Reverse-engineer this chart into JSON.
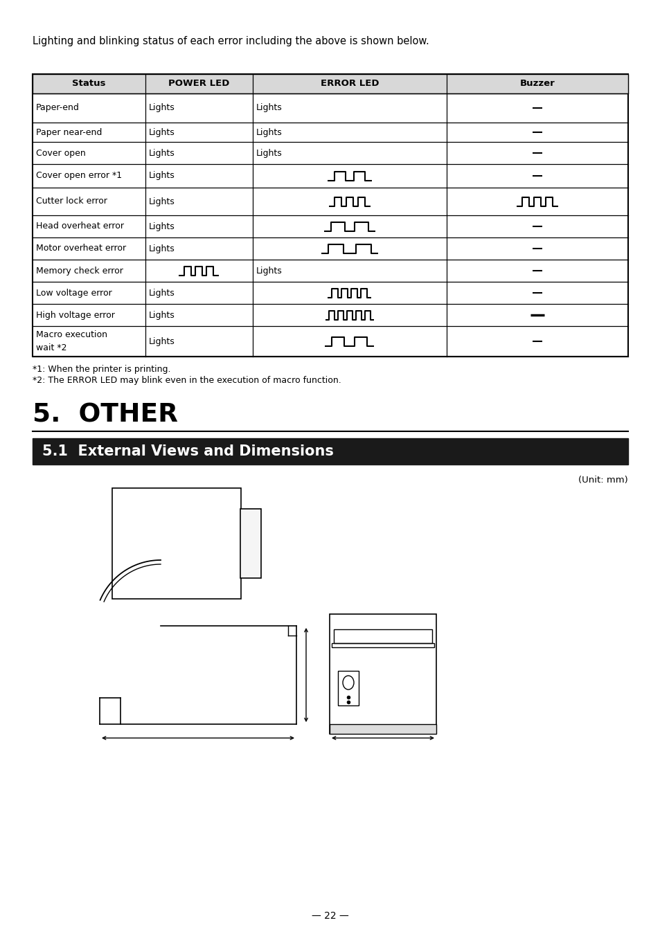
{
  "intro_text": "Lighting and blinking status of each error including the above is shown below.",
  "table_headers": [
    "Status",
    "POWER LED",
    "ERROR LED",
    "Buzzer"
  ],
  "rows": [
    {
      "status": "Paper-end",
      "power": "Lights",
      "error": "Lights",
      "buzzer": "dash"
    },
    {
      "status": "Paper near-end",
      "power": "Lights",
      "error": "Lights",
      "buzzer": "dash"
    },
    {
      "status": "Cover open",
      "power": "Lights",
      "error": "Lights",
      "buzzer": "dash"
    },
    {
      "status": "Cover open error *1",
      "power": "Lights",
      "error": "pulse2",
      "buzzer": "dash"
    },
    {
      "status": "Cutter lock error",
      "power": "Lights",
      "error": "pulse3narrow",
      "buzzer": "pulse3narrow"
    },
    {
      "status": "Head overheat error",
      "power": "Lights",
      "error": "pulse2wide",
      "buzzer": "dash"
    },
    {
      "status": "Motor overheat error",
      "power": "Lights",
      "error": "pulse2motor",
      "buzzer": "dash"
    },
    {
      "status": "Memory check error",
      "power": "pulse3mem",
      "error": "Lights",
      "buzzer": "dash"
    },
    {
      "status": "Low voltage error",
      "power": "Lights",
      "error": "pulse4low",
      "buzzer": "dash"
    },
    {
      "status": "High voltage error",
      "power": "Lights",
      "error": "pulse5high",
      "buzzer": "dashlarge"
    },
    {
      "status": "Macro execution\nwait *2",
      "power": "Lights",
      "error": "pulse2macro",
      "buzzer": "dash"
    }
  ],
  "footnotes": [
    "*1: When the printer is printing.",
    "*2: The ERROR LED may blink even in the execution of macro function."
  ],
  "section_title": "5.  OTHER",
  "subsection_title": "5.1  External Views and Dimensions",
  "unit_text": "(Unit: mm)",
  "page_number": "— 22 —",
  "bg_color": "#ffffff",
  "text_color": "#000000"
}
